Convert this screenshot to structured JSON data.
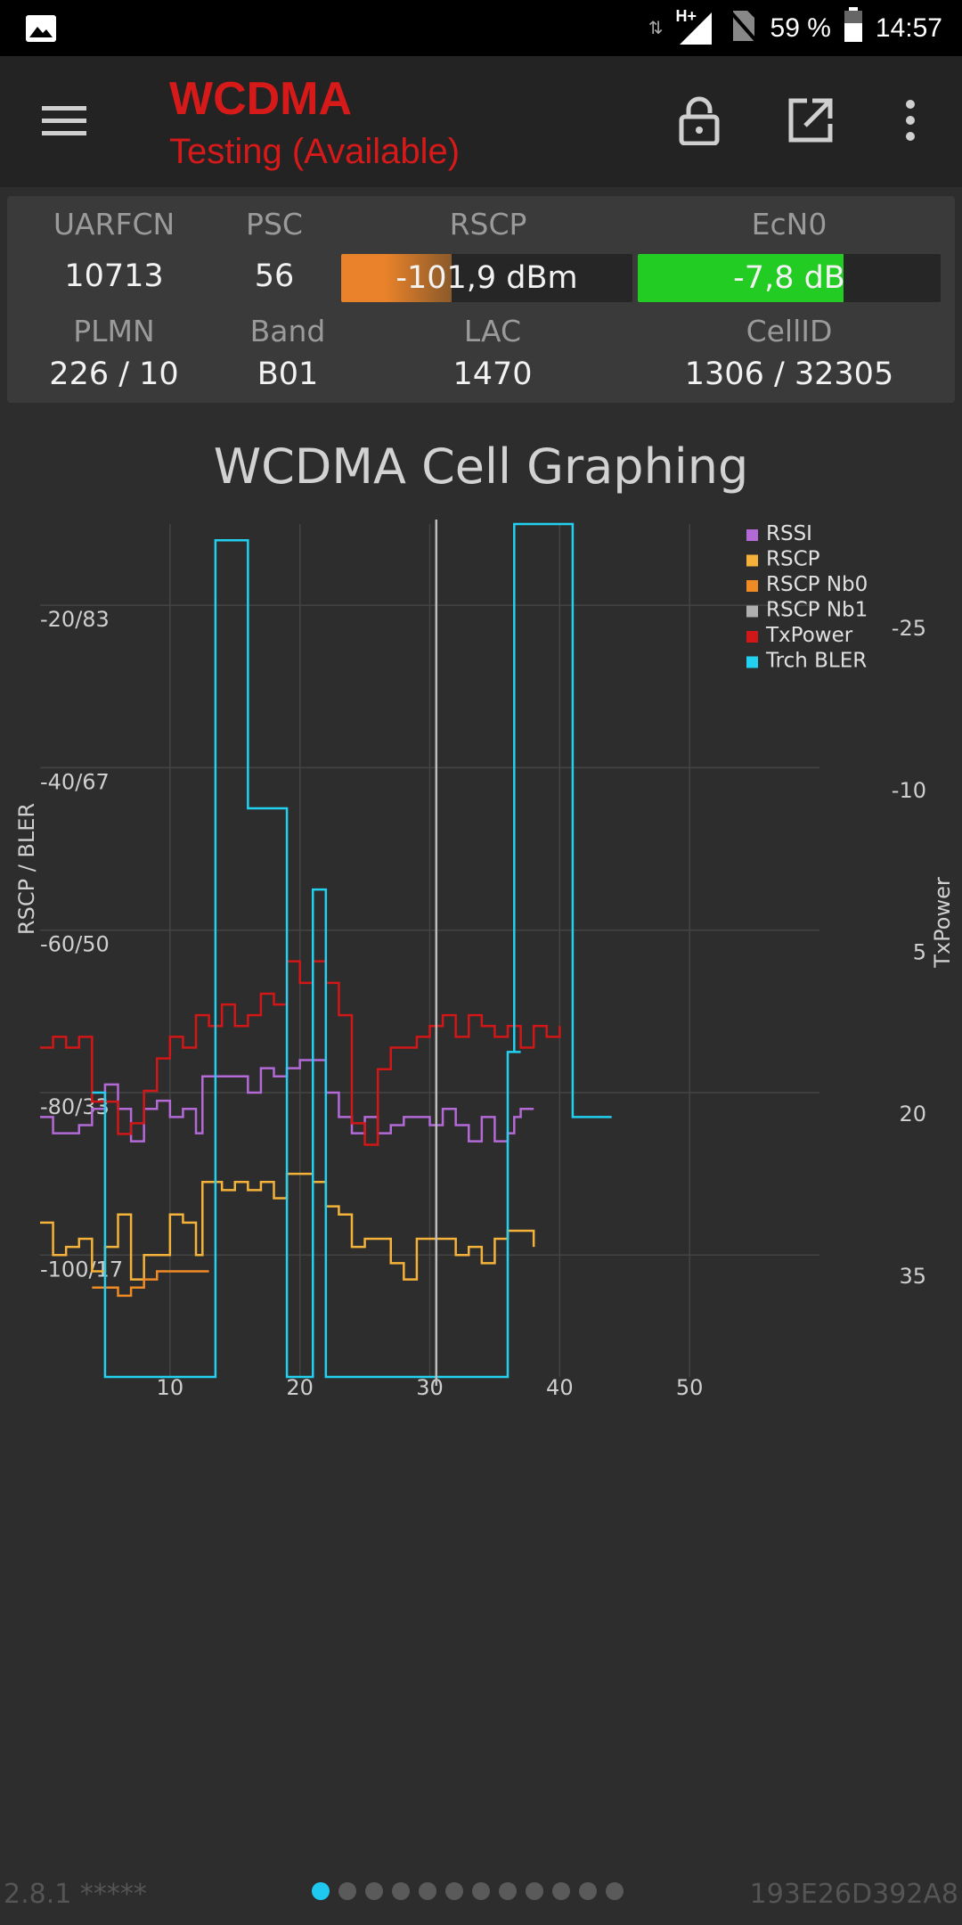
{
  "status_bar": {
    "network": "H+",
    "battery": "59 %",
    "time": "14:57"
  },
  "app_bar": {
    "title": "WCDMA",
    "subtitle": "Testing (Available)",
    "icons": [
      "menu-icon",
      "lock-icon",
      "open-external-icon",
      "more-vert-icon"
    ]
  },
  "info": {
    "uarfcn": {
      "label": "UARFCN",
      "value": "10713"
    },
    "psc": {
      "label": "PSC",
      "value": "56"
    },
    "rscp": {
      "label": "RSCP",
      "value": "-101,9 dBm",
      "level": 0.38,
      "color": "#e9822a"
    },
    "ecn0": {
      "label": "EcN0",
      "value": "-7,8 dB",
      "level": 0.68,
      "color": "#22cc22"
    },
    "plmn": {
      "label": "PLMN",
      "value": "226 / 10"
    },
    "band": {
      "label": "Band",
      "value": "B01"
    },
    "lac": {
      "label": "LAC",
      "value": "1470"
    },
    "cellid": {
      "label": "CellID",
      "value": "1306 / 32305"
    }
  },
  "chart_title": "WCDMA Cell Graphing",
  "chart_data": {
    "type": "line",
    "title": "WCDMA Cell Graphing",
    "xlabel": "",
    "ylabel": "RSCP / BLER",
    "y2label": "TxPower",
    "xlim": [
      0,
      60
    ],
    "x_ticks": [
      "10",
      "20",
      "30",
      "40",
      "50"
    ],
    "ylim": [
      -115,
      -10
    ],
    "y_ticks": [
      "-20/83",
      "-40/67",
      "-60/50",
      "-80/33",
      "-100/17"
    ],
    "y_tick_values": [
      -20,
      -40,
      -60,
      -80,
      -100
    ],
    "y2lim": [
      44.5,
      -34.5
    ],
    "y2_ticks": [
      "-25",
      "-10",
      "5",
      "20",
      "35"
    ],
    "y2_tick_values": [
      -25,
      -10,
      5,
      20,
      35
    ],
    "cursor_x": 30.5,
    "grid": true,
    "legend_position": "top-right",
    "series": [
      {
        "name": "RSSI",
        "color": "#b36ad6",
        "axis": "left",
        "points": [
          [
            0,
            -83
          ],
          [
            1,
            -85
          ],
          [
            3,
            -84
          ],
          [
            4,
            -82
          ],
          [
            5,
            -79
          ],
          [
            6,
            -82
          ],
          [
            7,
            -86
          ],
          [
            8,
            -82
          ],
          [
            9,
            -81
          ],
          [
            10,
            -83
          ],
          [
            11,
            -82
          ],
          [
            12,
            -85
          ],
          [
            12.5,
            -78
          ],
          [
            14,
            -78
          ],
          [
            16,
            -80
          ],
          [
            17,
            -77
          ],
          [
            18,
            -78
          ],
          [
            19,
            -77
          ],
          [
            20,
            -76
          ],
          [
            21,
            -76
          ],
          [
            22,
            -80
          ],
          [
            23,
            -83
          ],
          [
            24,
            -85
          ],
          [
            25,
            -83
          ],
          [
            26,
            -85
          ],
          [
            27,
            -84
          ],
          [
            28,
            -83
          ],
          [
            29,
            -83
          ],
          [
            30,
            -84
          ],
          [
            31,
            -82
          ],
          [
            32,
            -84
          ],
          [
            33,
            -86
          ],
          [
            34,
            -83
          ],
          [
            35,
            -86
          ],
          [
            36,
            -85
          ],
          [
            36.5,
            -83
          ],
          [
            37,
            -82
          ],
          [
            38,
            -82
          ]
        ]
      },
      {
        "name": "RSCP",
        "color": "#f5b23a",
        "axis": "left",
        "points": [
          [
            0,
            -96
          ],
          [
            1,
            -100
          ],
          [
            2,
            -99
          ],
          [
            3,
            -98
          ],
          [
            4,
            -102
          ],
          [
            5,
            -99
          ],
          [
            6,
            -95
          ],
          [
            7,
            -103
          ],
          [
            8,
            -100
          ],
          [
            9,
            -100
          ],
          [
            10,
            -95
          ],
          [
            11,
            -96
          ],
          [
            12,
            -100
          ],
          [
            12.5,
            -91
          ],
          [
            14,
            -92
          ],
          [
            15,
            -91
          ],
          [
            16,
            -92
          ],
          [
            17,
            -91
          ],
          [
            18,
            -93
          ],
          [
            19,
            -90
          ],
          [
            20,
            -90
          ],
          [
            21,
            -91
          ],
          [
            22,
            -94
          ],
          [
            23,
            -95
          ],
          [
            24,
            -99
          ],
          [
            25,
            -98
          ],
          [
            26,
            -98
          ],
          [
            27,
            -101
          ],
          [
            28,
            -103
          ],
          [
            29,
            -98
          ],
          [
            30,
            -98
          ],
          [
            31,
            -98
          ],
          [
            32,
            -100
          ],
          [
            33,
            -99
          ],
          [
            34,
            -101
          ],
          [
            35,
            -98
          ],
          [
            36,
            -97
          ],
          [
            37,
            -97
          ],
          [
            38,
            -99
          ]
        ]
      },
      {
        "name": "RSCP Nb0",
        "color": "#f08a24",
        "axis": "left",
        "points": [
          [
            4,
            -104
          ],
          [
            6,
            -105
          ],
          [
            7,
            -104
          ],
          [
            8,
            -103
          ],
          [
            9,
            -102
          ],
          [
            10,
            -102
          ],
          [
            12,
            -102
          ],
          [
            13,
            -102
          ]
        ]
      },
      {
        "name": "RSCP Nb1",
        "color": "#b0b0b0",
        "axis": "left",
        "points": []
      },
      {
        "name": "TxPower",
        "color": "#d11717",
        "axis": "right",
        "points": [
          [
            0,
            14
          ],
          [
            1,
            13
          ],
          [
            2,
            14
          ],
          [
            3,
            13
          ],
          [
            4,
            19
          ],
          [
            5,
            19
          ],
          [
            6,
            22
          ],
          [
            7,
            21
          ],
          [
            8,
            18
          ],
          [
            9,
            15
          ],
          [
            10,
            13
          ],
          [
            11,
            14
          ],
          [
            12,
            11
          ],
          [
            13,
            12
          ],
          [
            14,
            10
          ],
          [
            15,
            12
          ],
          [
            16,
            11
          ],
          [
            17,
            9
          ],
          [
            18,
            10
          ],
          [
            19,
            6
          ],
          [
            20,
            8
          ],
          [
            21,
            6
          ],
          [
            22,
            8
          ],
          [
            23,
            11
          ],
          [
            24,
            21
          ],
          [
            25,
            23
          ],
          [
            26,
            16
          ],
          [
            27,
            14
          ],
          [
            28,
            14
          ],
          [
            29,
            13
          ],
          [
            30,
            12
          ],
          [
            31,
            11
          ],
          [
            32,
            13
          ],
          [
            33,
            11
          ],
          [
            34,
            12
          ],
          [
            35,
            13
          ],
          [
            36,
            12
          ],
          [
            37,
            14
          ],
          [
            38,
            12
          ],
          [
            39,
            13
          ],
          [
            40,
            12
          ]
        ]
      },
      {
        "name": "Trch BLER",
        "color": "#22d0f0",
        "axis": "left",
        "points": [
          [
            4,
            -80
          ],
          [
            4.5,
            -80
          ],
          [
            5,
            -115
          ],
          [
            10,
            -115
          ],
          [
            11,
            -115
          ],
          [
            12,
            -115
          ],
          [
            12.5,
            -115
          ],
          [
            13,
            -115
          ],
          [
            13.5,
            -12
          ],
          [
            14,
            -12
          ],
          [
            15,
            -12
          ],
          [
            16,
            -12
          ],
          [
            16,
            -45
          ],
          [
            17,
            -45
          ],
          [
            18,
            -45
          ],
          [
            19,
            -115
          ],
          [
            20,
            -115
          ],
          [
            21,
            -115
          ],
          [
            21,
            -55
          ],
          [
            22,
            -55
          ],
          [
            22,
            -115
          ],
          [
            23,
            -115
          ],
          [
            30,
            -115
          ],
          [
            31,
            -115
          ],
          [
            33,
            -115
          ],
          [
            36,
            -115
          ],
          [
            36,
            -75
          ],
          [
            37,
            -75
          ],
          [
            36.5,
            -10
          ],
          [
            37,
            -10
          ],
          [
            38,
            -10
          ],
          [
            39,
            -10
          ],
          [
            40,
            -10
          ],
          [
            41,
            -10
          ],
          [
            41,
            -83
          ],
          [
            42,
            -83
          ],
          [
            43,
            -83
          ],
          [
            44,
            -83
          ]
        ]
      }
    ]
  },
  "footer": {
    "version": "2.8.1 *****",
    "device_id": "193E26D392A8",
    "page_count": 12,
    "active_page": 1
  }
}
